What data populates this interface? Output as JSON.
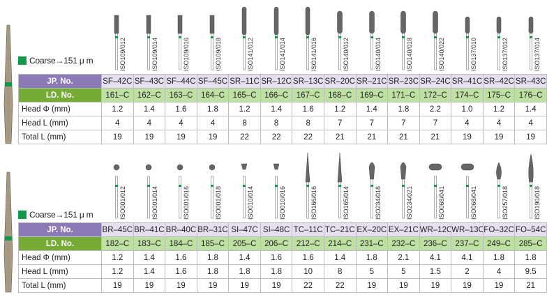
{
  "legend_color": "#0e9a48",
  "sections": [
    {
      "legend": "Coarse→151 μ m",
      "headers": {
        "jp": "JP. No.",
        "ld": "LD. No.",
        "head_dia": "Head Φ (mm)",
        "head_len": "Head L (mm)",
        "total_len": "Total L (mm)"
      },
      "items": [
        {
          "iso": "ISO109/012",
          "jp": "SF–42C",
          "ld": "161–C",
          "head_dia": "1.2",
          "head_len": "4",
          "total_len": "19",
          "shape": "tube"
        },
        {
          "iso": "ISO109/014",
          "jp": "SF–43C",
          "ld": "162–C",
          "head_dia": "1.4",
          "head_len": "4",
          "total_len": "19",
          "shape": "tube"
        },
        {
          "iso": "ISO109/016",
          "jp": "SF–44C",
          "ld": "163–C",
          "head_dia": "1.6",
          "head_len": "4",
          "total_len": "19",
          "shape": "tube"
        },
        {
          "iso": "ISO109/018",
          "jp": "SF–45C",
          "ld": "164–C",
          "head_dia": "1.8",
          "head_len": "4",
          "total_len": "19",
          "shape": "tube"
        },
        {
          "iso": "ISO141/012",
          "jp": "SR–11C",
          "ld": "165–C",
          "head_dia": "1.2",
          "head_len": "8",
          "total_len": "22",
          "shape": "round-long"
        },
        {
          "iso": "ISO141/014",
          "jp": "SR–12C",
          "ld": "166–C",
          "head_dia": "1.4",
          "head_len": "8",
          "total_len": "22",
          "shape": "round-long"
        },
        {
          "iso": "ISO141/016",
          "jp": "SR–13C",
          "ld": "167–C",
          "head_dia": "1.6",
          "head_len": "8",
          "total_len": "22",
          "shape": "round-long"
        },
        {
          "iso": "ISO140/012",
          "jp": "SR–20C",
          "ld": "168–C",
          "head_dia": "1.2",
          "head_len": "7",
          "total_len": "21",
          "shape": "round"
        },
        {
          "iso": "ISO140/014",
          "jp": "SR–21C",
          "ld": "169–C",
          "head_dia": "1.4",
          "head_len": "7",
          "total_len": "21",
          "shape": "round"
        },
        {
          "iso": "ISO140/018",
          "jp": "SR–23C",
          "ld": "171–C",
          "head_dia": "1.8",
          "head_len": "7",
          "total_len": "21",
          "shape": "round"
        },
        {
          "iso": "ISO140/022",
          "jp": "SR–24C",
          "ld": "172–C",
          "head_dia": "2.2",
          "head_len": "7",
          "total_len": "21",
          "shape": "round"
        },
        {
          "iso": "ISO137/010",
          "jp": "SR–41C",
          "ld": "174–C",
          "head_dia": "1.0",
          "head_len": "4",
          "total_len": "19",
          "shape": "round-short"
        },
        {
          "iso": "ISO137/012",
          "jp": "SR–42C",
          "ld": "175–C",
          "head_dia": "1.2",
          "head_len": "4",
          "total_len": "19",
          "shape": "round-short"
        },
        {
          "iso": "ISO137/014",
          "jp": "SR–43C",
          "ld": "176–C",
          "head_dia": "1.4",
          "head_len": "4",
          "total_len": "19",
          "shape": "round-short"
        }
      ]
    },
    {
      "legend": "Coarse→151 μ m",
      "headers": {
        "jp": "JP. No.",
        "ld": "LD. No.",
        "head_dia": "Head Φ (mm)",
        "head_len": "Head L (mm)",
        "total_len": "Total L (mm)"
      },
      "items": [
        {
          "iso": "ISO001/012",
          "jp": "BR–45C",
          "ld": "182–C",
          "head_dia": "1.2",
          "head_len": "1.2",
          "total_len": "19",
          "shape": "ball"
        },
        {
          "iso": "ISO001/014",
          "jp": "BR–41C",
          "ld": "183–C",
          "head_dia": "1.4",
          "head_len": "1.4",
          "total_len": "19",
          "shape": "ball"
        },
        {
          "iso": "ISO001/016",
          "jp": "BR–40C",
          "ld": "184–C",
          "head_dia": "1.6",
          "head_len": "1.6",
          "total_len": "19",
          "shape": "ball"
        },
        {
          "iso": "ISO001/018",
          "jp": "BR–31C",
          "ld": "185–C",
          "head_dia": "1.8",
          "head_len": "1.8",
          "total_len": "19",
          "shape": "ball"
        },
        {
          "iso": "ISO010/014",
          "jp": "SI–47C",
          "ld": "205–C",
          "head_dia": "1.4",
          "head_len": "1.8",
          "total_len": "19",
          "shape": "inverted-cone"
        },
        {
          "iso": "ISO010/016",
          "jp": "SI–48C",
          "ld": "206–C",
          "head_dia": "1.6",
          "head_len": "1.8",
          "total_len": "19",
          "shape": "inverted-cone"
        },
        {
          "iso": "ISO166/016",
          "jp": "TC–11C",
          "ld": "212–C",
          "head_dia": "1.6",
          "head_len": "10",
          "total_len": "22",
          "shape": "taper-point"
        },
        {
          "iso": "ISO165/014",
          "jp": "TC–21C",
          "ld": "214–C",
          "head_dia": "1.4",
          "head_len": "8",
          "total_len": "22",
          "shape": "taper-point"
        },
        {
          "iso": "ISO234/018",
          "jp": "EX–20C",
          "ld": "231–C",
          "head_dia": "1.8",
          "head_len": "5",
          "total_len": "19",
          "shape": "pear"
        },
        {
          "iso": "ISO234/021",
          "jp": "EX–21C",
          "ld": "232–C",
          "head_dia": "2.1",
          "head_len": "5",
          "total_len": "19",
          "shape": "pear"
        },
        {
          "iso": "ISO068/041",
          "jp": "WR–12C",
          "ld": "236–C",
          "head_dia": "4.1",
          "head_len": "1.5",
          "total_len": "19",
          "shape": "wheel"
        },
        {
          "iso": "ISO068/041",
          "jp": "WR–13C",
          "ld": "237–C",
          "head_dia": "4.1",
          "head_len": "2",
          "total_len": "19",
          "shape": "wheel"
        },
        {
          "iso": "ISO257/018",
          "jp": "FO–32C",
          "ld": "249–C",
          "head_dia": "1.8",
          "head_len": "4",
          "total_len": "19",
          "shape": "flame"
        },
        {
          "iso": "ISO190/018",
          "jp": "FO–54C",
          "ld": "285–C",
          "head_dia": "1.8",
          "head_len": "9.5",
          "total_len": "21",
          "shape": "long-flame"
        }
      ]
    }
  ]
}
